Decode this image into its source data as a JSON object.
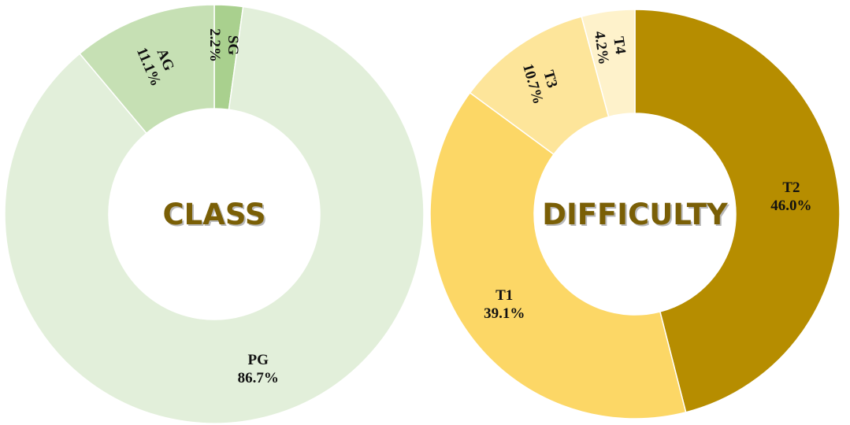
{
  "chart_data": [
    {
      "type": "pie",
      "title": "CLASS",
      "slices": [
        {
          "label": "SG",
          "value": 2.2,
          "display": "2.2%",
          "color": "#a9d08e"
        },
        {
          "label": "PG",
          "value": 86.7,
          "display": "86.7%",
          "color": "#e2efda"
        },
        {
          "label": "AG",
          "value": 11.1,
          "display": "11.1%",
          "color": "#c6e0b4"
        }
      ]
    },
    {
      "type": "pie",
      "title": "DIFFICULTY",
      "slices": [
        {
          "label": "T2",
          "value": 46.0,
          "display": "46.0%",
          "color": "#b68d00"
        },
        {
          "label": "T1",
          "value": 39.1,
          "display": "39.1%",
          "color": "#fcd766"
        },
        {
          "label": "T3",
          "value": 10.7,
          "display": "10.7%",
          "color": "#fde59a"
        },
        {
          "label": "T4",
          "value": 4.2,
          "display": "4.2%",
          "color": "#fef2cb"
        }
      ]
    }
  ]
}
